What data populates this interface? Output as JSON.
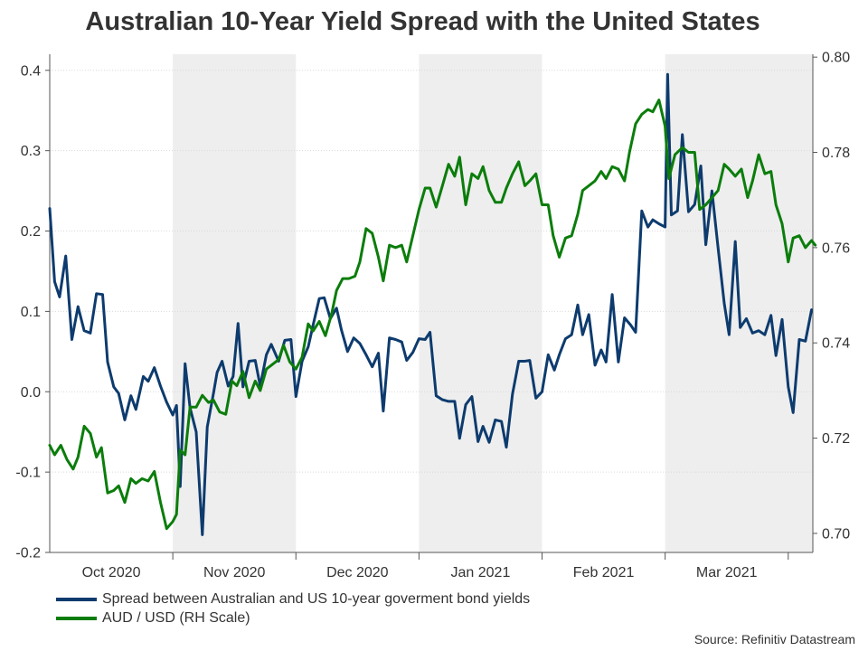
{
  "chart_data": {
    "type": "line",
    "title": "Australian 10-Year Yield Spread with the United States",
    "x_axis": {
      "unit": "month",
      "domain": [
        0,
        6.2
      ],
      "tick_labels": [
        "Oct 2020",
        "Nov 2020",
        "Dec 2020",
        "Jan 2021",
        "Feb 2021",
        "Mar 2021"
      ],
      "label_positions": [
        0.5,
        1.5,
        2.5,
        3.5,
        4.5,
        5.5
      ],
      "tick_positions": [
        1,
        2,
        3,
        4,
        5,
        6
      ],
      "shaded_months": [
        [
          1,
          2
        ],
        [
          3,
          4
        ],
        [
          5,
          6.2
        ]
      ]
    },
    "y_left": {
      "range": [
        -0.2,
        0.42
      ],
      "ticks": [
        -0.2,
        -0.1,
        0.0,
        0.1,
        0.2,
        0.3,
        0.4
      ],
      "tick_labels": [
        "-0.2",
        "-0.1",
        "0.0",
        "0.1",
        "0.2",
        "0.3",
        "0.4"
      ]
    },
    "y_right": {
      "range": [
        0.696,
        0.8006
      ],
      "ticks": [
        0.7,
        0.72,
        0.74,
        0.76,
        0.78,
        0.8
      ],
      "tick_labels": [
        "0.70",
        "0.72",
        "0.74",
        "0.76",
        "0.78",
        "0.80"
      ]
    },
    "series": [
      {
        "name": "Spread between Australian and US 10-year goverment bond yields",
        "axis": "left",
        "color": "#0d3b6e",
        "points": [
          [
            0,
            0.228
          ],
          [
            0.04,
            0.137
          ],
          [
            0.08,
            0.118
          ],
          [
            0.13,
            0.169
          ],
          [
            0.18,
            0.065
          ],
          [
            0.23,
            0.106
          ],
          [
            0.28,
            0.076
          ],
          [
            0.33,
            0.073
          ],
          [
            0.38,
            0.122
          ],
          [
            0.43,
            0.121
          ],
          [
            0.47,
            0.037
          ],
          [
            0.52,
            0.006
          ],
          [
            0.56,
            -0.002
          ],
          [
            0.61,
            -0.035
          ],
          [
            0.66,
            -0.005
          ],
          [
            0.7,
            -0.022
          ],
          [
            0.76,
            0.019
          ],
          [
            0.8,
            0.013
          ],
          [
            0.85,
            0.03
          ],
          [
            0.9,
            0.007
          ],
          [
            0.95,
            -0.013
          ],
          [
            1.0,
            -0.029
          ],
          [
            1.03,
            -0.017
          ],
          [
            1.06,
            -0.118
          ],
          [
            1.1,
            0.035
          ],
          [
            1.14,
            -0.02
          ],
          [
            1.19,
            -0.05
          ],
          [
            1.24,
            -0.178
          ],
          [
            1.28,
            -0.044
          ],
          [
            1.33,
            -0.002
          ],
          [
            1.36,
            0.024
          ],
          [
            1.4,
            0.038
          ],
          [
            1.45,
            0.007
          ],
          [
            1.49,
            0.019
          ],
          [
            1.53,
            0.085
          ],
          [
            1.57,
            0.006
          ],
          [
            1.62,
            0.038
          ],
          [
            1.67,
            0.039
          ],
          [
            1.71,
            0.007
          ],
          [
            1.76,
            0.046
          ],
          [
            1.8,
            0.059
          ],
          [
            1.86,
            0.038
          ],
          [
            1.91,
            0.064
          ],
          [
            1.96,
            0.065
          ],
          [
            2.0,
            -0.006
          ],
          [
            2.05,
            0.038
          ],
          [
            2.1,
            0.056
          ],
          [
            2.14,
            0.083
          ],
          [
            2.19,
            0.116
          ],
          [
            2.23,
            0.117
          ],
          [
            2.28,
            0.091
          ],
          [
            2.33,
            0.104
          ],
          [
            2.37,
            0.077
          ],
          [
            2.42,
            0.05
          ],
          [
            2.47,
            0.067
          ],
          [
            2.52,
            0.06
          ],
          [
            2.57,
            0.046
          ],
          [
            2.62,
            0.031
          ],
          [
            2.67,
            0.048
          ],
          [
            2.71,
            -0.024
          ],
          [
            2.76,
            0.067
          ],
          [
            2.81,
            0.065
          ],
          [
            2.86,
            0.062
          ],
          [
            2.9,
            0.039
          ],
          [
            2.95,
            0.049
          ],
          [
            3.0,
            0.066
          ],
          [
            3.05,
            0.065
          ],
          [
            3.09,
            0.074
          ],
          [
            3.14,
            -0.005
          ],
          [
            3.19,
            -0.01
          ],
          [
            3.24,
            -0.012
          ],
          [
            3.29,
            -0.012
          ],
          [
            3.33,
            -0.058
          ],
          [
            3.38,
            -0.016
          ],
          [
            3.43,
            -0.006
          ],
          [
            3.48,
            -0.062
          ],
          [
            3.52,
            -0.043
          ],
          [
            3.57,
            -0.063
          ],
          [
            3.62,
            -0.035
          ],
          [
            3.67,
            -0.037
          ],
          [
            3.71,
            -0.069
          ],
          [
            3.76,
            -0.003
          ],
          [
            3.81,
            0.038
          ],
          [
            3.86,
            0.038
          ],
          [
            3.9,
            0.039
          ],
          [
            3.95,
            -0.008
          ],
          [
            4.0,
            0.0
          ],
          [
            4.05,
            0.046
          ],
          [
            4.1,
            0.027
          ],
          [
            4.14,
            0.046
          ],
          [
            4.19,
            0.066
          ],
          [
            4.24,
            0.071
          ],
          [
            4.29,
            0.108
          ],
          [
            4.33,
            0.071
          ],
          [
            4.38,
            0.096
          ],
          [
            4.43,
            0.033
          ],
          [
            4.48,
            0.052
          ],
          [
            4.52,
            0.037
          ],
          [
            4.57,
            0.121
          ],
          [
            4.62,
            0.037
          ],
          [
            4.67,
            0.092
          ],
          [
            4.72,
            0.083
          ],
          [
            4.76,
            0.074
          ],
          [
            4.81,
            0.225
          ],
          [
            4.86,
            0.205
          ],
          [
            4.9,
            0.214
          ],
          [
            4.95,
            0.209
          ],
          [
            5.0,
            0.205
          ],
          [
            5.02,
            0.395
          ],
          [
            5.05,
            0.22
          ],
          [
            5.1,
            0.225
          ],
          [
            5.14,
            0.32
          ],
          [
            5.19,
            0.224
          ],
          [
            5.24,
            0.233
          ],
          [
            5.29,
            0.281
          ],
          [
            5.33,
            0.183
          ],
          [
            5.38,
            0.25
          ],
          [
            5.43,
            0.179
          ],
          [
            5.48,
            0.11
          ],
          [
            5.52,
            0.071
          ],
          [
            5.57,
            0.187
          ],
          [
            5.61,
            0.08
          ],
          [
            5.66,
            0.091
          ],
          [
            5.71,
            0.073
          ],
          [
            5.76,
            0.076
          ],
          [
            5.81,
            0.071
          ],
          [
            5.86,
            0.095
          ],
          [
            5.9,
            0.045
          ],
          [
            5.95,
            0.09
          ],
          [
            6.0,
            0.006
          ],
          [
            6.04,
            -0.026
          ],
          [
            6.09,
            0.065
          ],
          [
            6.14,
            0.063
          ],
          [
            6.19,
            0.102
          ]
        ]
      },
      {
        "name": "AUD / USD (RH Scale)",
        "axis": "right",
        "color": "#0b7d0b",
        "points": [
          [
            0,
            0.7185
          ],
          [
            0.04,
            0.7165
          ],
          [
            0.09,
            0.7185
          ],
          [
            0.14,
            0.7155
          ],
          [
            0.19,
            0.7135
          ],
          [
            0.23,
            0.716
          ],
          [
            0.28,
            0.7225
          ],
          [
            0.33,
            0.721
          ],
          [
            0.38,
            0.716
          ],
          [
            0.42,
            0.718
          ],
          [
            0.47,
            0.7085
          ],
          [
            0.52,
            0.709
          ],
          [
            0.56,
            0.71
          ],
          [
            0.61,
            0.7065
          ],
          [
            0.66,
            0.7115
          ],
          [
            0.7,
            0.7105
          ],
          [
            0.75,
            0.7115
          ],
          [
            0.8,
            0.711
          ],
          [
            0.85,
            0.713
          ],
          [
            0.9,
            0.7065
          ],
          [
            0.95,
            0.701
          ],
          [
            1.0,
            0.7025
          ],
          [
            1.03,
            0.704
          ],
          [
            1.06,
            0.7175
          ],
          [
            1.1,
            0.7165
          ],
          [
            1.14,
            0.7265
          ],
          [
            1.19,
            0.7265
          ],
          [
            1.24,
            0.729
          ],
          [
            1.29,
            0.7275
          ],
          [
            1.33,
            0.728
          ],
          [
            1.38,
            0.7255
          ],
          [
            1.43,
            0.725
          ],
          [
            1.48,
            0.732
          ],
          [
            1.52,
            0.731
          ],
          [
            1.57,
            0.734
          ],
          [
            1.62,
            0.7285
          ],
          [
            1.67,
            0.732
          ],
          [
            1.71,
            0.73
          ],
          [
            1.76,
            0.7345
          ],
          [
            1.81,
            0.7355
          ],
          [
            1.86,
            0.7365
          ],
          [
            1.9,
            0.7395
          ],
          [
            1.95,
            0.736
          ],
          [
            2.0,
            0.7345
          ],
          [
            2.05,
            0.737
          ],
          [
            2.1,
            0.744
          ],
          [
            2.14,
            0.7425
          ],
          [
            2.19,
            0.7445
          ],
          [
            2.24,
            0.7415
          ],
          [
            2.29,
            0.746
          ],
          [
            2.33,
            0.751
          ],
          [
            2.38,
            0.7535
          ],
          [
            2.43,
            0.7535
          ],
          [
            2.48,
            0.754
          ],
          [
            2.52,
            0.757
          ],
          [
            2.57,
            0.764
          ],
          [
            2.62,
            0.763
          ],
          [
            2.67,
            0.758
          ],
          [
            2.71,
            0.753
          ],
          [
            2.76,
            0.7605
          ],
          [
            2.81,
            0.76
          ],
          [
            2.86,
            0.7605
          ],
          [
            2.9,
            0.757
          ],
          [
            2.95,
            0.7625
          ],
          [
            3.0,
            0.768
          ],
          [
            3.05,
            0.7725
          ],
          [
            3.09,
            0.7725
          ],
          [
            3.14,
            0.7685
          ],
          [
            3.19,
            0.773
          ],
          [
            3.24,
            0.7775
          ],
          [
            3.29,
            0.775
          ],
          [
            3.33,
            0.779
          ],
          [
            3.38,
            0.769
          ],
          [
            3.43,
            0.7755
          ],
          [
            3.48,
            0.7745
          ],
          [
            3.52,
            0.777
          ],
          [
            3.57,
            0.772
          ],
          [
            3.62,
            0.7695
          ],
          [
            3.67,
            0.7695
          ],
          [
            3.71,
            0.7725
          ],
          [
            3.76,
            0.7755
          ],
          [
            3.81,
            0.778
          ],
          [
            3.86,
            0.773
          ],
          [
            3.9,
            0.774
          ],
          [
            3.95,
            0.7755
          ],
          [
            4.0,
            0.769
          ],
          [
            4.05,
            0.769
          ],
          [
            4.09,
            0.7625
          ],
          [
            4.14,
            0.758
          ],
          [
            4.19,
            0.762
          ],
          [
            4.24,
            0.7625
          ],
          [
            4.29,
            0.767
          ],
          [
            4.33,
            0.772
          ],
          [
            4.38,
            0.773
          ],
          [
            4.43,
            0.774
          ],
          [
            4.48,
            0.776
          ],
          [
            4.52,
            0.7745
          ],
          [
            4.57,
            0.777
          ],
          [
            4.62,
            0.7765
          ],
          [
            4.67,
            0.774
          ],
          [
            4.71,
            0.78
          ],
          [
            4.76,
            0.786
          ],
          [
            4.81,
            0.788
          ],
          [
            4.86,
            0.789
          ],
          [
            4.9,
            0.7885
          ],
          [
            4.95,
            0.791
          ],
          [
            5.0,
            0.7855
          ],
          [
            5.03,
            0.7745
          ],
          [
            5.08,
            0.7795
          ],
          [
            5.14,
            0.781
          ],
          [
            5.19,
            0.78
          ],
          [
            5.24,
            0.78
          ],
          [
            5.28,
            0.768
          ],
          [
            5.33,
            0.769
          ],
          [
            5.38,
            0.7705
          ],
          [
            5.43,
            0.772
          ],
          [
            5.48,
            0.7775
          ],
          [
            5.52,
            0.7765
          ],
          [
            5.57,
            0.775
          ],
          [
            5.62,
            0.7765
          ],
          [
            5.67,
            0.7705
          ],
          [
            5.71,
            0.774
          ],
          [
            5.76,
            0.7795
          ],
          [
            5.81,
            0.7755
          ],
          [
            5.86,
            0.776
          ],
          [
            5.9,
            0.769
          ],
          [
            5.95,
            0.765
          ],
          [
            6.0,
            0.757
          ],
          [
            6.04,
            0.762
          ],
          [
            6.09,
            0.7625
          ],
          [
            6.14,
            0.76
          ],
          [
            6.19,
            0.7615
          ],
          [
            6.22,
            0.7605
          ]
        ]
      }
    ],
    "legend_position": "bottom-left",
    "grid": "horizontal"
  },
  "source_text": "Source: Refinitiv Datastream"
}
